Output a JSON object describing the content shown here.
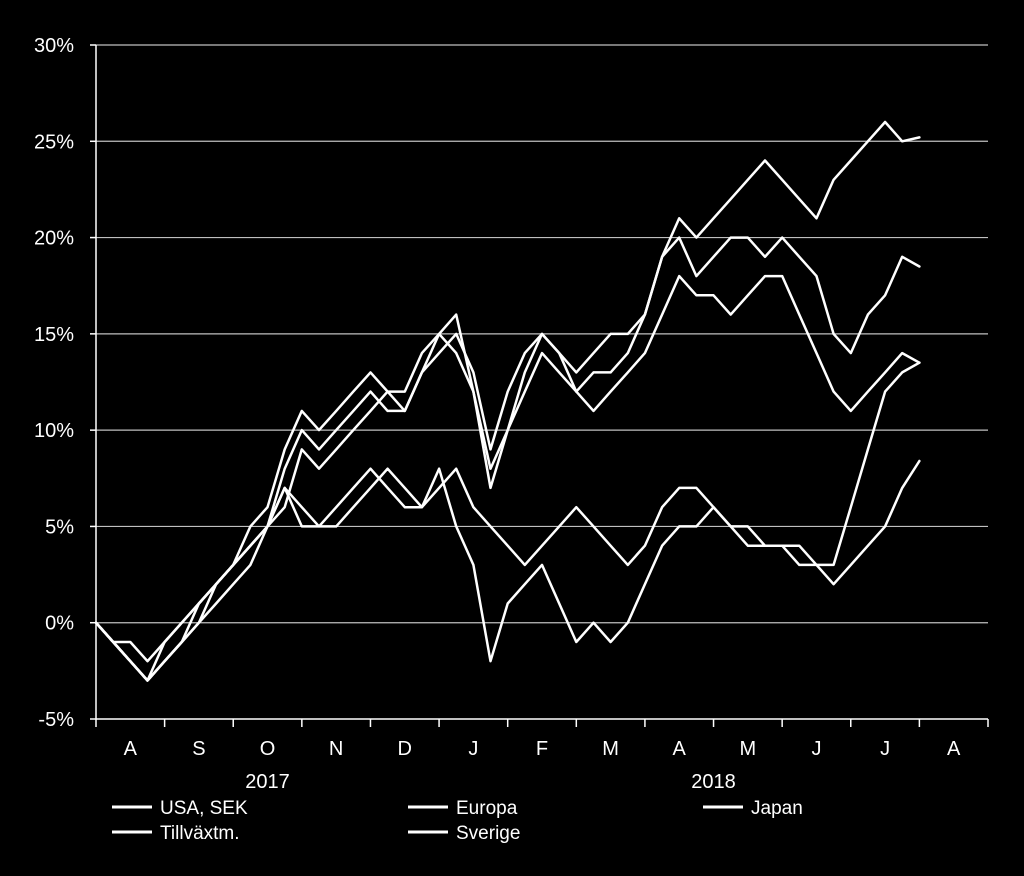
{
  "chart_data": {
    "type": "line",
    "title": "",
    "xlabel": "",
    "ylabel": "",
    "ylim": [
      -5,
      30
    ],
    "yticks": [
      -5,
      0,
      5,
      10,
      15,
      20,
      25,
      30
    ],
    "ytick_labels": [
      "-5%",
      "0%",
      "5%",
      "10%",
      "15%",
      "20%",
      "25%",
      "30%"
    ],
    "grid": true,
    "legend": "bottom",
    "months": [
      "A",
      "S",
      "O",
      "N",
      "D",
      "J",
      "F",
      "M",
      "A",
      "M",
      "J",
      "J",
      "A"
    ],
    "years": [
      {
        "label": "2017",
        "first_month": 0,
        "last_month": 4
      },
      {
        "label": "2018",
        "first_month": 5,
        "last_month": 12
      }
    ],
    "x_unit": "month index (0 = start of August 2017)",
    "xlim": [
      0,
      13
    ],
    "series": [
      {
        "name": "USA, SEK",
        "x": [
          0.0,
          0.25,
          0.5,
          0.75,
          1.0,
          1.25,
          1.5,
          1.75,
          2.0,
          2.25,
          2.5,
          2.75,
          3.0,
          3.25,
          3.5,
          3.75,
          4.0,
          4.25,
          4.5,
          4.75,
          5.0,
          5.25,
          5.5,
          5.75,
          6.0,
          6.25,
          6.5,
          6.75,
          7.0,
          7.25,
          7.5,
          7.75,
          8.0,
          8.25,
          8.5,
          8.75,
          9.0,
          9.25,
          9.5,
          9.75,
          10.0,
          10.25,
          10.5,
          10.75,
          11.0,
          11.25,
          11.5,
          11.75,
          12.0
        ],
        "values": [
          0,
          -1,
          -2,
          -3,
          -2,
          -1,
          1,
          2,
          3,
          5,
          6,
          9,
          11,
          10,
          11,
          12,
          13,
          12,
          12,
          14,
          15,
          16,
          12,
          8,
          10,
          13,
          15,
          14,
          12,
          13,
          13,
          14,
          16,
          19,
          21,
          20,
          21,
          22,
          23,
          24,
          23,
          22,
          21,
          23,
          24,
          25,
          26,
          25,
          25.2
        ]
      },
      {
        "name": "Europa",
        "x": [
          0.0,
          0.25,
          0.5,
          0.75,
          1.0,
          1.25,
          1.5,
          1.75,
          2.0,
          2.25,
          2.5,
          2.75,
          3.0,
          3.25,
          3.5,
          3.75,
          4.0,
          4.25,
          4.5,
          4.75,
          5.0,
          5.25,
          5.5,
          5.75,
          6.0,
          6.25,
          6.5,
          6.75,
          7.0,
          7.25,
          7.5,
          7.75,
          8.0,
          8.25,
          8.5,
          8.75,
          9.0,
          9.25,
          9.5,
          9.75,
          10.0,
          10.25,
          10.5,
          10.75,
          11.0,
          11.25,
          11.5,
          11.75,
          12.0
        ],
        "values": [
          0,
          -1,
          -2,
          -3,
          -1,
          0,
          1,
          2,
          3,
          4,
          5,
          8,
          10,
          9,
          10,
          11,
          12,
          11,
          11,
          13,
          14,
          15,
          13,
          9,
          12,
          14,
          15,
          14,
          13,
          14,
          15,
          15,
          16,
          19,
          20,
          18,
          19,
          20,
          20,
          19,
          20,
          19,
          18,
          15,
          14,
          16,
          17,
          19,
          18.5
        ]
      },
      {
        "name": "Japan",
        "x": [
          0.0,
          0.25,
          0.5,
          0.75,
          1.0,
          1.25,
          1.5,
          1.75,
          2.0,
          2.25,
          2.5,
          2.75,
          3.0,
          3.25,
          3.5,
          3.75,
          4.0,
          4.25,
          4.5,
          4.75,
          5.0,
          5.25,
          5.5,
          5.75,
          6.0,
          6.25,
          6.5,
          6.75,
          7.0,
          7.25,
          7.5,
          7.75,
          8.0,
          8.25,
          8.5,
          8.75,
          9.0,
          9.25,
          9.5,
          9.75,
          10.0,
          10.25,
          10.5,
          10.75,
          11.0,
          11.25,
          11.5,
          11.75,
          12.0
        ],
        "values": [
          0,
          -1,
          -2,
          -3,
          -2,
          -1,
          0,
          2,
          3,
          4,
          5,
          7,
          6,
          5,
          5,
          6,
          7,
          8,
          7,
          6,
          7,
          8,
          6,
          5,
          4,
          3,
          4,
          5,
          6,
          5,
          4,
          3,
          4,
          6,
          7,
          7,
          6,
          5,
          4,
          4,
          4,
          4,
          3,
          2,
          3,
          4,
          5,
          7,
          8.4
        ]
      },
      {
        "name": "Tillväxtm.",
        "x": [
          0.0,
          0.25,
          0.5,
          0.75,
          1.0,
          1.25,
          1.5,
          1.75,
          2.0,
          2.25,
          2.5,
          2.75,
          3.0,
          3.25,
          3.5,
          3.75,
          4.0,
          4.25,
          4.5,
          4.75,
          5.0,
          5.25,
          5.5,
          5.75,
          6.0,
          6.25,
          6.5,
          6.75,
          7.0,
          7.25,
          7.5,
          7.75,
          8.0,
          8.25,
          8.5,
          8.75,
          9.0,
          9.25,
          9.5,
          9.75,
          10.0,
          10.25,
          10.5,
          10.75,
          11.0,
          11.25,
          11.5,
          11.75,
          12.0
        ],
        "values": [
          0,
          -1,
          -1,
          -2,
          -1,
          0,
          1,
          2,
          3,
          4,
          5,
          6,
          9,
          8,
          9,
          10,
          11,
          12,
          11,
          13,
          15,
          14,
          12,
          7,
          10,
          12,
          14,
          13,
          12,
          11,
          12,
          13,
          14,
          16,
          18,
          17,
          17,
          16,
          17,
          18,
          18,
          16,
          14,
          12,
          11,
          12,
          13,
          14,
          13.5
        ]
      },
      {
        "name": "Sverige",
        "x": [
          0.0,
          0.25,
          0.5,
          0.75,
          1.0,
          1.25,
          1.5,
          1.75,
          2.0,
          2.25,
          2.5,
          2.75,
          3.0,
          3.25,
          3.5,
          3.75,
          4.0,
          4.25,
          4.5,
          4.75,
          5.0,
          5.25,
          5.5,
          5.75,
          6.0,
          6.25,
          6.5,
          6.75,
          7.0,
          7.25,
          7.5,
          7.75,
          8.0,
          8.25,
          8.5,
          8.75,
          9.0,
          9.25,
          9.5,
          9.75,
          10.0,
          10.25,
          10.5,
          10.75,
          11.0,
          11.25,
          11.5,
          11.75,
          12.0
        ],
        "values": [
          0,
          -1,
          -2,
          -3,
          -2,
          -1,
          0,
          1,
          2,
          3,
          5,
          7,
          5,
          5,
          6,
          7,
          8,
          7,
          6,
          6,
          8,
          5,
          3,
          -2,
          1,
          2,
          3,
          1,
          -1,
          0,
          -1,
          0,
          2,
          4,
          5,
          5,
          6,
          5,
          5,
          4,
          4,
          3,
          3,
          3,
          6,
          9,
          12,
          13,
          13.5
        ]
      }
    ]
  }
}
